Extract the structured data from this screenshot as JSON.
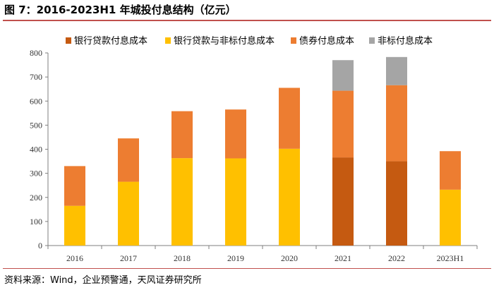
{
  "figure": {
    "title": "图 7：2016-2023H1 年城投付息结构（亿元）",
    "source": "资料来源：Wind，企业预警通，天风证券研究所"
  },
  "chart_data": {
    "type": "bar",
    "stacked": true,
    "title": "图 7：2016-2023H1 年城投付息结构（亿元）",
    "xlabel": "",
    "ylabel": "",
    "ylim": [
      0,
      800
    ],
    "yticks": [
      0,
      100,
      200,
      300,
      400,
      500,
      600,
      700,
      800
    ],
    "categories": [
      "2016",
      "2017",
      "2018",
      "2019",
      "2020",
      "2021",
      "2022",
      "2023H1"
    ],
    "legend_position": "top",
    "series": [
      {
        "name": "银行贷款付息成本",
        "color": "#c55a11",
        "values": [
          0,
          0,
          0,
          0,
          0,
          366,
          350,
          0
        ]
      },
      {
        "name": "银行贷款与非标付息成本",
        "color": "#ffc000",
        "values": [
          165,
          265,
          363,
          362,
          402,
          0,
          0,
          232
        ]
      },
      {
        "name": "债券付息成本",
        "color": "#ed7d31",
        "values": [
          165,
          180,
          195,
          203,
          253,
          277,
          316,
          160
        ]
      },
      {
        "name": "非标付息成本",
        "color": "#a5a5a5",
        "values": [
          0,
          0,
          0,
          0,
          0,
          127,
          117,
          0
        ]
      }
    ]
  }
}
